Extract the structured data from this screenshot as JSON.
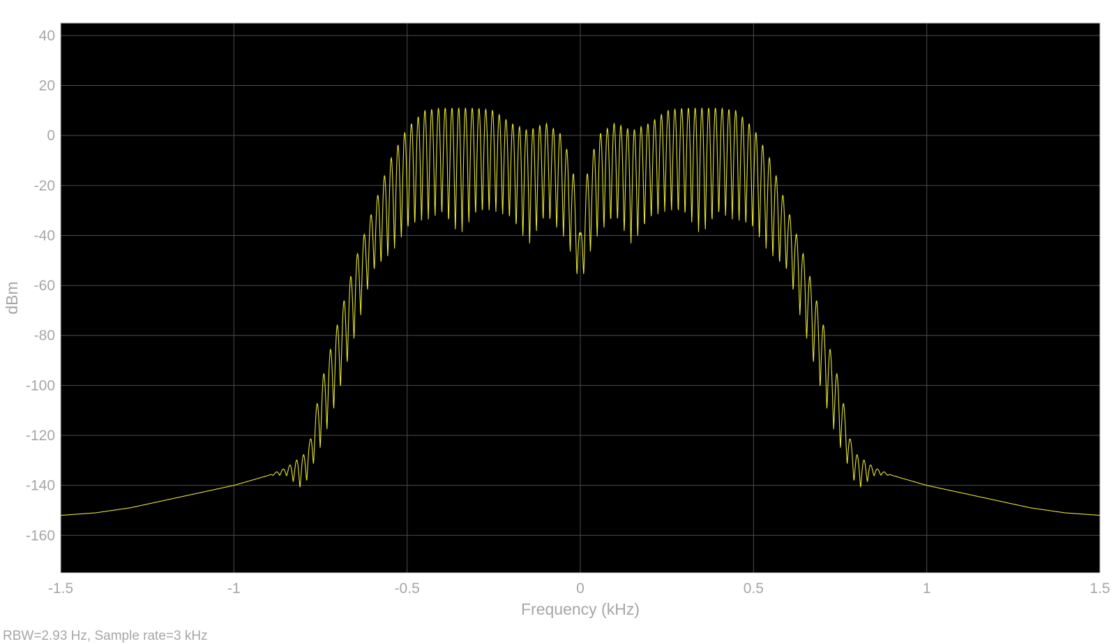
{
  "chart_data": {
    "type": "line",
    "title": "",
    "xlabel": "Frequency (kHz)",
    "ylabel": "dBm",
    "xlim": [
      -1.5,
      1.5
    ],
    "ylim": [
      -175,
      45
    ],
    "x_ticks": [
      -1.5,
      -1,
      -0.5,
      0,
      0.5,
      1,
      1.5
    ],
    "x_tick_labels": [
      "-1.5",
      "-1",
      "-0.5",
      "0",
      "0.5",
      "1",
      "1.5"
    ],
    "y_ticks": [
      40,
      20,
      0,
      -20,
      -40,
      -60,
      -80,
      -100,
      -120,
      -140,
      -160
    ],
    "y_tick_labels": [
      "40",
      "20",
      "0",
      "-20",
      "-40",
      "-60",
      "-80",
      "-100",
      "-120",
      "-140",
      "-160"
    ],
    "grid": true,
    "background": "#000000",
    "series": [
      {
        "color": "#e6e632",
        "x": [
          -1.5,
          -1.4,
          -1.3,
          -1.2,
          -1.1,
          -1.0,
          -0.9,
          -0.85,
          -0.8,
          -0.78,
          -0.75,
          -0.7,
          -0.65,
          -0.6,
          -0.55,
          -0.5,
          -0.45,
          -0.4,
          -0.35,
          -0.3,
          -0.25,
          -0.2,
          -0.15,
          -0.1,
          -0.05,
          -0.02,
          0.0,
          0.02,
          0.05,
          0.1,
          0.15,
          0.2,
          0.25,
          0.3,
          0.35,
          0.4,
          0.45,
          0.5,
          0.55,
          0.6,
          0.65,
          0.7,
          0.75,
          0.78,
          0.8,
          0.85,
          0.9,
          1.0,
          1.1,
          1.2,
          1.3,
          1.4,
          1.5
        ],
        "y_max": [
          -152,
          -151,
          -149,
          -146,
          -143,
          -140,
          -136,
          -133,
          -128,
          -122,
          -100,
          -75,
          -50,
          -30,
          -10,
          3,
          10,
          11,
          11,
          11,
          10,
          5,
          2,
          5,
          0,
          -15,
          -40,
          -15,
          0,
          5,
          2,
          5,
          10,
          11,
          11,
          11,
          10,
          3,
          -10,
          -30,
          -50,
          -75,
          -100,
          -122,
          -128,
          -133,
          -136,
          -140,
          -143,
          -146,
          -149,
          -151,
          -152
        ],
        "y_min": [
          -152,
          -151,
          -149,
          -146,
          -143,
          -140,
          -136,
          -136,
          -142,
          -135,
          -125,
          -105,
          -80,
          -55,
          -48,
          -38,
          -34,
          -32,
          -40,
          -32,
          -30,
          -34,
          -44,
          -33,
          -40,
          -50,
          -62,
          -50,
          -40,
          -33,
          -44,
          -34,
          -30,
          -32,
          -40,
          -32,
          -34,
          -38,
          -48,
          -55,
          -80,
          -105,
          -125,
          -135,
          -142,
          -136,
          -136,
          -140,
          -143,
          -146,
          -149,
          -151,
          -152
        ],
        "ripple_period": 0.0195
      }
    ]
  },
  "footer": {
    "text": "RBW=2.93 Hz, Sample rate=3 kHz"
  }
}
